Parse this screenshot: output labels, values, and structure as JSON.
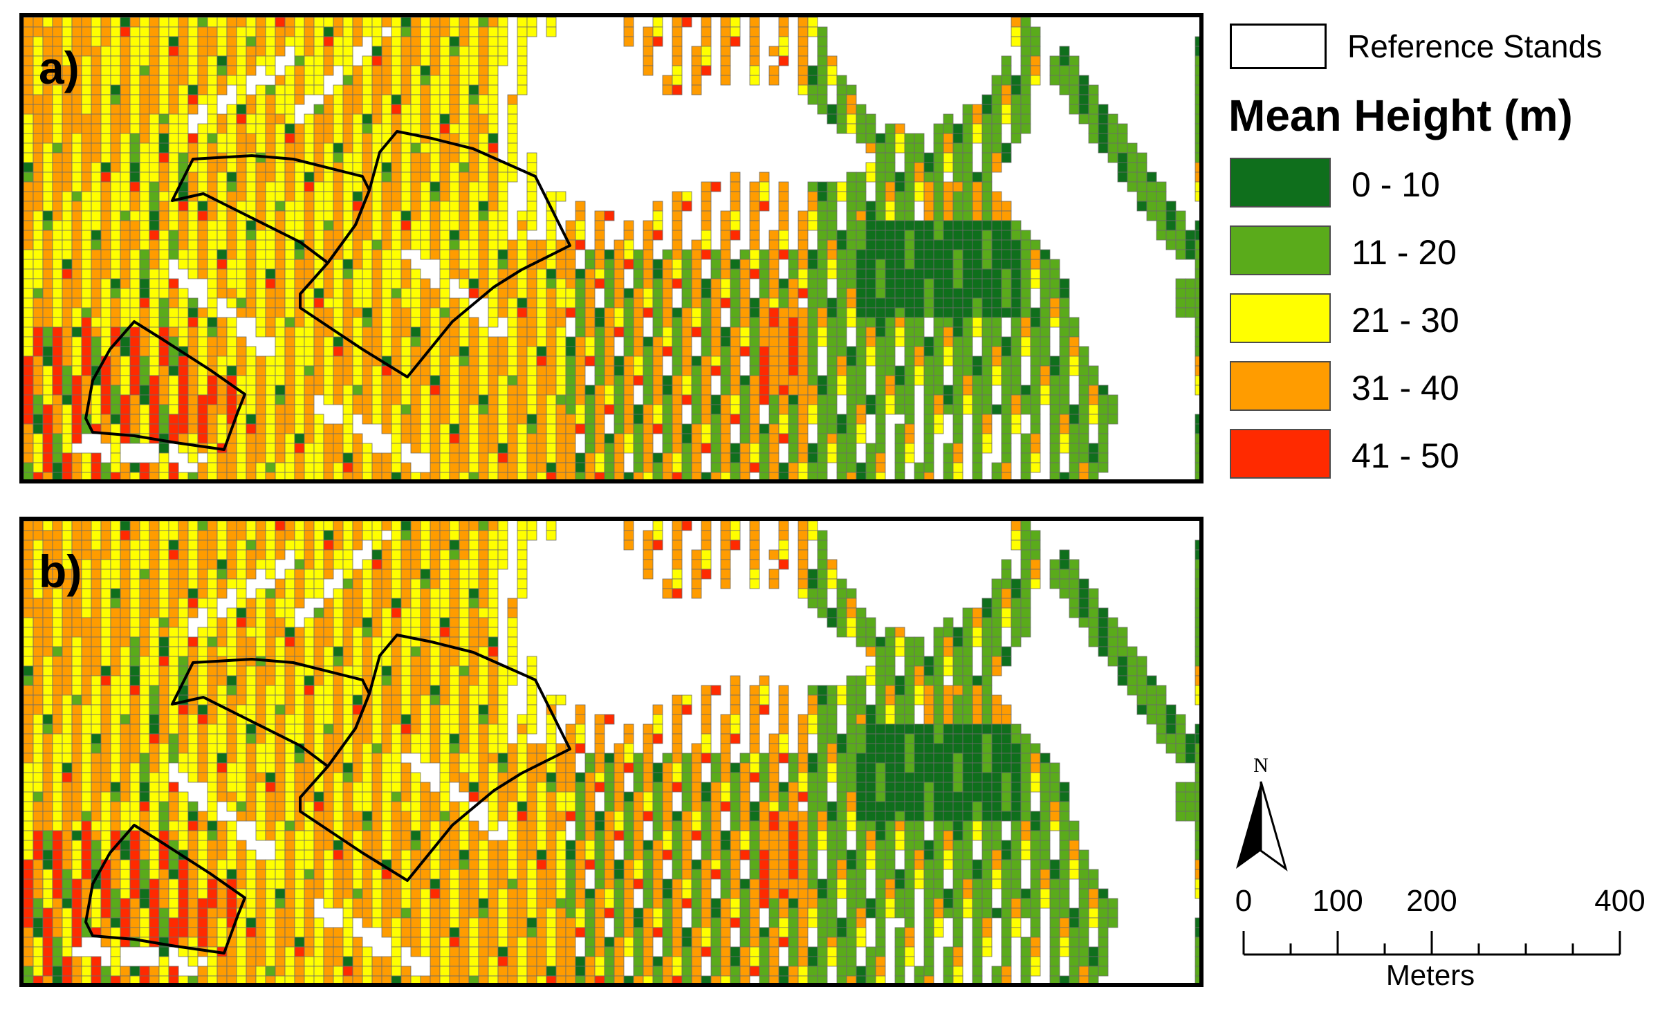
{
  "panels": [
    {
      "label": "a)"
    },
    {
      "label": "b)"
    }
  ],
  "legend": {
    "reference_label": "Reference Stands",
    "title": "Mean Height (m)",
    "classes": [
      {
        "label": "0 - 10",
        "color": "#0f6f1c"
      },
      {
        "label": "11 - 20",
        "color": "#5aab1b"
      },
      {
        "label": "21 - 30",
        "color": "#ffff00"
      },
      {
        "label": "31 - 40",
        "color": "#ff9c00"
      },
      {
        "label": "41 - 50",
        "color": "#ff2a00"
      }
    ]
  },
  "north_arrow": {
    "label": "N"
  },
  "scale_bar": {
    "unit": "Meters",
    "ticks": [
      {
        "value": 0,
        "label": "0"
      },
      {
        "value": 100,
        "label": "100"
      },
      {
        "value": 200,
        "label": "200"
      },
      {
        "value": 400,
        "label": "400"
      }
    ],
    "max": 400
  },
  "colors": {
    "grid_line": "#6b6b6b",
    "stand_outline": "#000000",
    "frame": "#000000"
  }
}
